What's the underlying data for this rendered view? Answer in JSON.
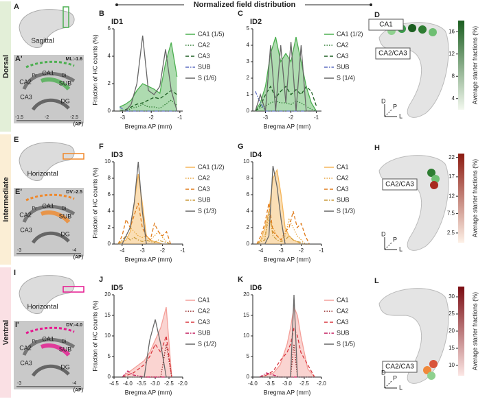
{
  "figure": {
    "header": "Normalized field distribution",
    "rows": [
      {
        "label": "Dorsal",
        "color": "#e3efd8",
        "letter": "A",
        "view": "Sagittal",
        "letter2": "A'",
        "coord": "ML:-1.6",
        "regions": [
          "CA1",
          "CA2",
          "CA3",
          "DG",
          "SUB",
          "Pr",
          "Di"
        ],
        "ticks": [
          "-1.5",
          "-2",
          "-2.5"
        ],
        "unit": "(AP)",
        "accent": "#4caf50",
        "panel3d": {
          "letter": "D",
          "labels": [
            "CA1",
            "CA2/CA3"
          ],
          "axes": [
            "D",
            "P",
            "L"
          ],
          "colorbar": {
            "title": "Average starter fractions (%)",
            "lim": [
              2,
              18
            ],
            "ticks": [
              4,
              8,
              12,
              16
            ],
            "colors": [
              "#f2f8ee",
              "#1b5e20"
            ]
          }
        }
      },
      {
        "label": "Intermediate",
        "color": "#fbeed5",
        "letter": "E",
        "view": "Horizontal",
        "letter2": "E'",
        "coord": "DV:-2.5",
        "regions": [
          "CA1",
          "CA2",
          "CA3",
          "DG",
          "SUB",
          "Pr",
          "Di"
        ],
        "ticks": [
          "-3",
          "-4"
        ],
        "unit": "(AP)",
        "accent": "#f0882a",
        "panel3d": {
          "letter": "H",
          "labels": [
            "CA2/CA3"
          ],
          "axes": [
            "D",
            "P",
            "L"
          ],
          "colorbar": {
            "title": "Average starter fractions (%)",
            "lim": [
              0,
              23
            ],
            "ticks": [
              2.5,
              7.5,
              12,
              17,
              22
            ],
            "colors": [
              "#fdf0e6",
              "#8b1a10"
            ]
          }
        }
      },
      {
        "label": "Ventral",
        "color": "#fae0e4",
        "letter": "I",
        "view": "Horizontal",
        "letter2": "I'",
        "coord": "DV:-4.0",
        "regions": [
          "CA1",
          "CA2",
          "CA3",
          "DG",
          "SUB",
          "Pr",
          "Di"
        ],
        "ticks": [
          "-3",
          "-4"
        ],
        "unit": "(AP)",
        "accent": "#e6178f",
        "panel3d": {
          "letter": "L",
          "labels": [
            "CA2/CA3"
          ],
          "axes": [
            "D",
            "P",
            "L"
          ],
          "colorbar": {
            "title": "Average starter fractions (%)",
            "lim": [
              7,
              33
            ],
            "ticks": [
              10,
              15,
              20,
              25,
              30
            ],
            "colors": [
              "#fbe6e4",
              "#7a0c12"
            ]
          }
        }
      }
    ]
  },
  "chart_data": [
    {
      "type": "line",
      "panel": "B",
      "title": "ID1",
      "x_label": "Bregma AP (mm)",
      "y_label": "Fraction of HC counts (%)",
      "x": [
        -3.1,
        -2.9,
        -2.7,
        -2.5,
        -2.3,
        -2.1,
        -1.9,
        -1.7,
        -1.5,
        -1.3,
        -1.1
      ],
      "xlim": [
        -3.3,
        -0.9
      ],
      "xticks": [
        -3,
        -2,
        -1
      ],
      "ylim": [
        0,
        6
      ],
      "yticks": [
        0,
        2,
        4,
        6
      ],
      "series": [
        {
          "name": "CA1 (1/5)",
          "color": "#4caf50",
          "style": "solid",
          "fill": true,
          "values": [
            0.3,
            0.5,
            0.8,
            1.5,
            2,
            1.8,
            1.6,
            1.3,
            3.5,
            5,
            2.5
          ]
        },
        {
          "name": "CA2",
          "color": "#2e7d32",
          "style": "dotted",
          "values": [
            0,
            0,
            0.2,
            0.3,
            0.5,
            0.3,
            0.3,
            0.2,
            0.5,
            0.8,
            0.4
          ]
        },
        {
          "name": "CA3",
          "color": "#1b5e20",
          "style": "dashed",
          "values": [
            0,
            0.1,
            0.3,
            0.5,
            0.6,
            0.8,
            1,
            0.9,
            1.2,
            1.5,
            1.2
          ]
        },
        {
          "name": "SUB",
          "color": "#5c6bc0",
          "style": "dashdot",
          "values": [
            0.3,
            0,
            0,
            0,
            0,
            0,
            0,
            0,
            0,
            0,
            0
          ]
        },
        {
          "name": "S (1/6)",
          "color": "#666666",
          "style": "solid",
          "values": [
            0,
            0,
            0.5,
            2,
            5.5,
            1.5,
            1.2,
            1.8,
            4.5,
            1.5,
            0
          ]
        }
      ]
    },
    {
      "type": "line",
      "panel": "C",
      "title": "ID2",
      "x_label": "Bregma AP (mm)",
      "x": [
        -3.4,
        -3.2,
        -3.0,
        -2.8,
        -2.6,
        -2.4,
        -2.2,
        -2.0,
        -1.8,
        -1.6,
        -1.4,
        -1.2,
        -1.0
      ],
      "xlim": [
        -3.5,
        -0.8
      ],
      "xticks": [
        -3,
        -2,
        -1
      ],
      "ylim": [
        0,
        5
      ],
      "yticks": [
        0,
        1,
        2,
        3,
        4,
        5
      ],
      "series": [
        {
          "name": "CA1 (1/2)",
          "color": "#4caf50",
          "style": "solid",
          "fill": true,
          "values": [
            0,
            0.5,
            1.5,
            3.5,
            4.5,
            3,
            3.5,
            3,
            4.5,
            3,
            1.5,
            0.5,
            0
          ]
        },
        {
          "name": "CA2",
          "color": "#2e7d32",
          "style": "dotted",
          "values": [
            0,
            0.2,
            0.3,
            0.5,
            0.6,
            0.5,
            0.5,
            0.4,
            0.6,
            0.5,
            0.3,
            0.1,
            0
          ]
        },
        {
          "name": "CA3",
          "color": "#1b5e20",
          "style": "dashed",
          "values": [
            0,
            0.3,
            1,
            1.5,
            0.8,
            1.2,
            1.5,
            1,
            1.3,
            1,
            1.5,
            1.2,
            0.3
          ]
        },
        {
          "name": "SUB",
          "color": "#5c6bc0",
          "style": "dashdot",
          "values": [
            1.2,
            0.5,
            0,
            0,
            0,
            0,
            0,
            0,
            0,
            0,
            0,
            0,
            0
          ]
        },
        {
          "name": "S (1/4)",
          "color": "#666666",
          "style": "solid",
          "values": [
            0,
            1,
            0,
            4,
            0,
            4,
            0.5,
            4.2,
            0,
            4,
            0,
            0,
            0
          ]
        }
      ]
    },
    {
      "type": "line",
      "panel": "F",
      "title": "ID3",
      "x_label": "Bregma AP (mm)",
      "y_label": "Fraction of HC counts (%)",
      "x": [
        -4.2,
        -4.0,
        -3.8,
        -3.6,
        -3.4,
        -3.2,
        -3.0,
        -2.8,
        -2.6,
        -2.4,
        -2.2,
        -2.0,
        -1.8,
        -1.6
      ],
      "xlim": [
        -4.4,
        -1
      ],
      "xticks": [
        -4,
        -3,
        -2,
        -1
      ],
      "ylim": [
        0,
        10
      ],
      "yticks": [
        0,
        2,
        4,
        6,
        8,
        10
      ],
      "series": [
        {
          "name": "CA1 (1/2)",
          "color": "#f5b55a",
          "style": "solid",
          "fill": true,
          "values": [
            0,
            0.3,
            0.5,
            1.5,
            5,
            8.5,
            5,
            1,
            0.5,
            0.3,
            0.2,
            0,
            0,
            0
          ]
        },
        {
          "name": "CA2",
          "color": "#e8a33a",
          "style": "dotted",
          "values": [
            0,
            0.5,
            1,
            2,
            1.5,
            1,
            0.8,
            1,
            0.5,
            1,
            1.5,
            0.8,
            0.3,
            0
          ]
        },
        {
          "name": "CA3",
          "color": "#e07b1a",
          "style": "dashed",
          "values": [
            0,
            1,
            3,
            2,
            3.5,
            5,
            2,
            1,
            0.5,
            2.5,
            1.5,
            1,
            1.5,
            0
          ]
        },
        {
          "name": "SUB",
          "color": "#c99a3a",
          "style": "dashdot",
          "values": [
            0,
            0.5,
            1,
            0.5,
            0.8,
            0.5,
            0.3,
            0.5,
            0.3,
            0.2,
            0.5,
            0.3,
            0.2,
            0
          ]
        },
        {
          "name": "S  (1/3)",
          "color": "#666666",
          "style": "solid",
          "values": [
            0,
            0,
            1,
            2,
            5,
            10,
            4,
            0,
            0,
            0,
            0,
            0,
            0,
            0
          ]
        }
      ]
    },
    {
      "type": "line",
      "panel": "G",
      "title": "ID4",
      "x_label": "Bregma AP (mm)",
      "x": [
        -4.2,
        -4.0,
        -3.8,
        -3.6,
        -3.4,
        -3.2,
        -3.0,
        -2.8,
        -2.6,
        -2.4,
        -2.2,
        -2.0,
        -1.8,
        -1.6
      ],
      "xlim": [
        -4.4,
        -1
      ],
      "xticks": [
        -4,
        -3,
        -2,
        -1
      ],
      "ylim": [
        0,
        10
      ],
      "yticks": [
        0,
        2,
        4,
        6,
        8,
        10
      ],
      "series": [
        {
          "name": "CA1",
          "color": "#f5b55a",
          "style": "solid",
          "fill": true,
          "values": [
            0,
            0.5,
            2,
            4,
            8,
            9,
            6,
            2,
            1,
            0.5,
            0.3,
            0,
            0,
            0
          ]
        },
        {
          "name": "CA2",
          "color": "#e8a33a",
          "style": "dotted",
          "values": [
            0,
            0.5,
            1,
            3,
            2,
            1,
            0.5,
            1,
            3,
            2,
            1,
            0.5,
            0,
            0
          ]
        },
        {
          "name": "CA3",
          "color": "#e07b1a",
          "style": "dashed",
          "values": [
            0,
            1,
            2.5,
            5,
            1.5,
            1,
            0.5,
            1.5,
            2,
            4,
            2,
            2.5,
            1,
            0
          ]
        },
        {
          "name": "SUB",
          "color": "#c99a3a",
          "style": "dashdot",
          "values": [
            0,
            0.3,
            0.5,
            4,
            1,
            0.5,
            0.3,
            0.5,
            1,
            0.5,
            0.3,
            0.2,
            0,
            0
          ]
        },
        {
          "name": "S (1/3)",
          "color": "#666666",
          "style": "solid",
          "values": [
            0,
            0,
            0,
            1,
            9.5,
            7,
            3,
            0,
            0,
            0,
            0,
            0,
            0,
            0
          ]
        }
      ]
    },
    {
      "type": "line",
      "panel": "J",
      "title": "ID5",
      "x_label": "Bregma AP (mm)",
      "y_label": "Fraction of HC counts (%)",
      "x": [
        -4.2,
        -4.0,
        -3.8,
        -3.6,
        -3.4,
        -3.2,
        -3.0,
        -2.8,
        -2.6,
        -2.4
      ],
      "xlim": [
        -4.5,
        -2
      ],
      "xticks": [
        -4.5,
        {
          "value": -4,
          "label": "-4.0"
        },
        -3.5,
        {
          "value": -3,
          "label": "-3.0"
        },
        -2.5,
        {
          "value": -2,
          "label": "-2.0"
        }
      ],
      "ylim": [
        0,
        20
      ],
      "yticks": [
        0,
        5,
        10,
        15,
        20
      ],
      "series": [
        {
          "name": "CA1",
          "color": "#f4a09a",
          "style": "solid",
          "fill": true,
          "values": [
            0,
            1,
            2,
            3,
            4,
            6,
            9,
            12,
            17,
            0
          ]
        },
        {
          "name": "CA2",
          "color": "#8b1a1a",
          "style": "dotted",
          "values": [
            0,
            0,
            0,
            0,
            0,
            0,
            0,
            0,
            8,
            0
          ]
        },
        {
          "name": "CA3",
          "color": "#d9363e",
          "style": "dashed",
          "values": [
            0,
            0.5,
            1,
            2,
            3,
            5,
            8,
            6,
            10,
            0
          ]
        },
        {
          "name": "SUB",
          "color": "#c2185b",
          "style": "dashdot",
          "values": [
            0,
            1.5,
            0.5,
            0.3,
            0,
            0,
            0,
            0,
            0,
            0
          ]
        },
        {
          "name": "S (1/2)",
          "color": "#666666",
          "style": "solid",
          "values": [
            0,
            0,
            0,
            0,
            0,
            9,
            14,
            8,
            0,
            0
          ]
        }
      ]
    },
    {
      "type": "line",
      "panel": "K",
      "title": "ID6",
      "x_label": "Bregma AP (mm)",
      "x": [
        -3.8,
        -3.6,
        -3.4,
        -3.2,
        -3.0,
        -2.9,
        -2.8,
        -2.7,
        -2.6,
        -2.4,
        -2.2
      ],
      "xlim": [
        -4,
        -2
      ],
      "xticks": [
        {
          "value": -4,
          "label": "-4.0"
        },
        -3.5,
        {
          "value": -3,
          "label": "-3.0"
        },
        -2.5,
        {
          "value": -2,
          "label": "-2.0"
        }
      ],
      "ylim": [
        0,
        20
      ],
      "yticks": [
        0,
        5,
        10,
        15,
        20
      ],
      "series": [
        {
          "name": "CA1",
          "color": "#f4a09a",
          "style": "solid",
          "fill": true,
          "values": [
            0,
            0.5,
            1,
            3,
            8,
            12,
            17,
            15,
            10,
            2,
            0
          ]
        },
        {
          "name": "CA2",
          "color": "#8b1a1a",
          "style": "dotted",
          "values": [
            0,
            0,
            0,
            0,
            0,
            0,
            8,
            0,
            0,
            0,
            0
          ]
        },
        {
          "name": "CA3",
          "color": "#d9363e",
          "style": "dashed",
          "values": [
            0,
            0.5,
            1.5,
            4,
            6,
            8,
            12,
            10,
            6,
            3,
            0
          ]
        },
        {
          "name": "SUB",
          "color": "#c2185b",
          "style": "dashdot",
          "values": [
            0,
            1,
            0.5,
            0,
            0,
            0,
            0,
            0,
            0,
            0,
            0
          ]
        },
        {
          "name": "S (1/5)",
          "color": "#666666",
          "style": "solid",
          "values": [
            0,
            0,
            0,
            0,
            0,
            0,
            20,
            0,
            0,
            0,
            0
          ]
        }
      ]
    }
  ]
}
